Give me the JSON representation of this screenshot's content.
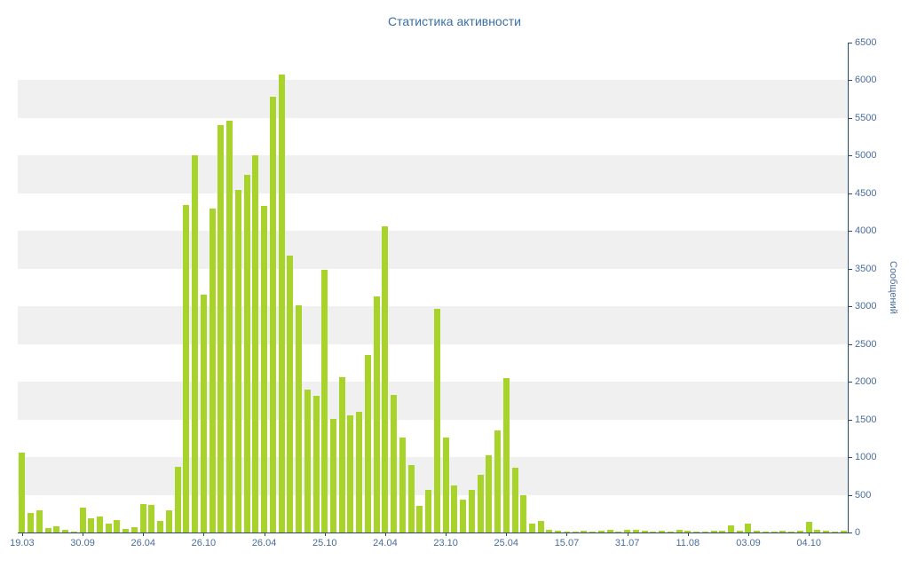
{
  "title": "Статистика активности",
  "colors": {
    "background": "#ffffff",
    "bar": "#a7d32a",
    "band": "#f0f0f0",
    "axis": "#2c4a6e",
    "label": "#4a6d9e",
    "title": "#3a6ea5"
  },
  "chart_data": {
    "type": "bar",
    "title": "Статистика активности",
    "xlabel": "",
    "ylabel": "Сообщений",
    "ylim": [
      0,
      6500
    ],
    "y_tick_step": 500,
    "legend": "none",
    "grid": "alternating horizontal gray bands every 500 units",
    "y_axis_side": "right",
    "values": [
      1060,
      260,
      300,
      55,
      80,
      40,
      15,
      330,
      190,
      215,
      120,
      160,
      45,
      70,
      375,
      365,
      150,
      300,
      870,
      4350,
      5000,
      3160,
      4300,
      5400,
      5460,
      4550,
      4750,
      5010,
      4330,
      5780,
      6080,
      3670,
      3010,
      1900,
      1810,
      3480,
      1510,
      2060,
      1560,
      1600,
      2360,
      3130,
      4060,
      1830,
      1260,
      900,
      350,
      560,
      2970,
      1260,
      620,
      430,
      560,
      760,
      1030,
      1360,
      2050,
      860,
      500,
      120,
      150,
      35,
      20,
      15,
      12,
      20,
      12,
      18,
      40,
      12,
      35,
      30,
      22,
      12,
      18,
      12,
      30,
      22,
      15,
      12,
      20,
      18,
      90,
      25,
      120,
      28,
      15,
      12,
      18,
      12,
      25,
      140,
      30,
      20,
      12,
      18
    ],
    "x_ticks": [
      {
        "label": "19.03",
        "index": 0
      },
      {
        "label": "30.09",
        "index": 7
      },
      {
        "label": "26.04",
        "index": 14
      },
      {
        "label": "26.10",
        "index": 21
      },
      {
        "label": "26.04",
        "index": 28
      },
      {
        "label": "25.10",
        "index": 35
      },
      {
        "label": "24.04",
        "index": 42
      },
      {
        "label": "23.10",
        "index": 49
      },
      {
        "label": "25.04",
        "index": 56
      },
      {
        "label": "15.07",
        "index": 63
      },
      {
        "label": "31.07",
        "index": 70
      },
      {
        "label": "11.08",
        "index": 77
      },
      {
        "label": "03.09",
        "index": 84
      },
      {
        "label": "04.10",
        "index": 91
      }
    ],
    "y_tick_labels": [
      "0",
      "500",
      "1000",
      "1500",
      "2000",
      "2500",
      "3000",
      "3500",
      "4000",
      "4500",
      "5000",
      "5500",
      "6000",
      "6500"
    ]
  }
}
